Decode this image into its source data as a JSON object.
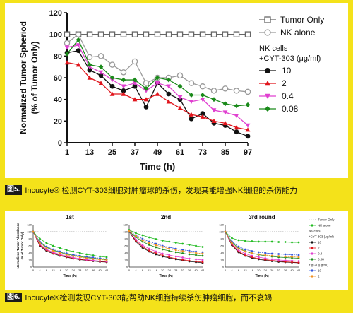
{
  "figure5": {
    "caption_tag": "图5.",
    "caption_text": "Incucyte® 检测CYT-303细胞对肿瘤球的杀伤，发现其能增强NK细胞的杀伤能力"
  },
  "figure6": {
    "caption_tag": "图6.",
    "caption_text": "Incucyte®检测发现CYT-303能帮助NK细胞持续杀伤肿瘤细胞，而不衰竭"
  },
  "chart_data": [
    {
      "type": "line",
      "xlabel": "Time (h)",
      "ylabel_line1": "Normalized Tumor Spheriod",
      "ylabel_line2": "(% of Tumor Only)",
      "xlim": [
        1,
        97
      ],
      "ylim": [
        0,
        120
      ],
      "xticks": [
        1,
        13,
        25,
        37,
        49,
        61,
        73,
        85,
        97
      ],
      "yticks": [
        0,
        20,
        40,
        60,
        80,
        100,
        120
      ],
      "x": [
        1,
        7,
        13,
        19,
        25,
        31,
        37,
        43,
        49,
        55,
        61,
        67,
        73,
        79,
        85,
        91,
        97
      ],
      "legend_title_line1": "NK cells",
      "legend_title_line2": "+CYT-303 (μg/ml)",
      "series": [
        {
          "name": "Tumor Only",
          "color": "#666666",
          "marker": "square-open",
          "values": [
            100,
            100,
            100,
            100,
            100,
            100,
            100,
            100,
            100,
            100,
            100,
            100,
            100,
            100,
            100,
            100,
            100
          ]
        },
        {
          "name": "NK alone",
          "color": "#9a9a9a",
          "marker": "circle-open",
          "values": [
            92,
            100,
            79,
            80,
            72,
            65,
            75,
            55,
            60,
            60,
            62,
            55,
            52,
            48,
            50,
            48,
            47
          ]
        },
        {
          "name": "10",
          "color": "#111111",
          "marker": "circle",
          "values": [
            83,
            85,
            67,
            62,
            52,
            48,
            52,
            33,
            55,
            45,
            40,
            22,
            27,
            18,
            16,
            10,
            6
          ]
        },
        {
          "name": "2",
          "color": "#e0141b",
          "marker": "triangle",
          "values": [
            74,
            72,
            60,
            55,
            45,
            45,
            40,
            40,
            45,
            38,
            32,
            26,
            24,
            20,
            18,
            14,
            12
          ]
        },
        {
          "name": "0.4",
          "color": "#e040d0",
          "marker": "triangle-down",
          "values": [
            88,
            90,
            70,
            65,
            58,
            52,
            55,
            48,
            55,
            52,
            42,
            38,
            40,
            30,
            28,
            25,
            16
          ]
        },
        {
          "name": "0.08",
          "color": "#1a8a1a",
          "marker": "diamond",
          "values": [
            82,
            95,
            72,
            70,
            60,
            58,
            58,
            50,
            60,
            58,
            52,
            44,
            44,
            40,
            36,
            34,
            35
          ]
        }
      ]
    },
    {
      "type": "line",
      "subplots": [
        {
          "title": "1st",
          "xlabel": "Time (h)",
          "ylabel_line1": "Normalized Tumor Abundance",
          "ylabel_line2": "(% of Tumor Only)",
          "ylim": [
            0,
            120
          ],
          "yticks": [
            0,
            20,
            40,
            60,
            80,
            100,
            120
          ],
          "xticks": [
            0,
            4,
            8,
            12,
            16,
            20,
            24,
            28,
            32,
            36,
            40,
            44
          ],
          "x": [
            0,
            4,
            8,
            12,
            16,
            20,
            24,
            28,
            32,
            36,
            40,
            44
          ],
          "series": [
            {
              "name": "Tumor Only",
              "color": "#999999",
              "values": [
                100,
                100,
                100,
                100,
                100,
                100,
                100,
                100,
                100,
                100,
                100,
                100
              ]
            },
            {
              "name": "NK alone",
              "color": "#22bb22",
              "values": [
                100,
                80,
                68,
                60,
                54,
                48,
                44,
                40,
                36,
                33,
                30,
                28
              ]
            },
            {
              "name": "10",
              "color": "#111111",
              "values": [
                100,
                60,
                45,
                38,
                32,
                28,
                24,
                21,
                19,
                17,
                15,
                14
              ]
            },
            {
              "name": "2",
              "color": "#e0141b",
              "values": [
                100,
                62,
                48,
                40,
                34,
                29,
                25,
                22,
                20,
                18,
                16,
                15
              ]
            },
            {
              "name": "0.4",
              "color": "#e040d0",
              "values": [
                100,
                65,
                50,
                42,
                36,
                31,
                27,
                24,
                21,
                19,
                17,
                16
              ]
            },
            {
              "name": "0.08",
              "color": "#1a8a1a",
              "values": [
                100,
                70,
                56,
                48,
                42,
                37,
                33,
                30,
                27,
                25,
                23,
                21
              ]
            },
            {
              "name": "10",
              "color": "#3355dd",
              "values": [
                100,
                72,
                58,
                50,
                44,
                39,
                35,
                32,
                29,
                27,
                25,
                23
              ]
            },
            {
              "name": "2",
              "color": "#f09020",
              "values": [
                100,
                68,
                54,
                46,
                40,
                35,
                31,
                28,
                25,
                23,
                21,
                20
              ]
            }
          ]
        },
        {
          "title": "2nd",
          "xlabel": "Time (h)",
          "ylim": [
            0,
            120
          ],
          "yticks": [
            0,
            20,
            40,
            60,
            80,
            100,
            120
          ],
          "xticks": [
            0,
            4,
            8,
            12,
            16,
            20,
            24,
            28,
            32,
            36,
            40,
            44
          ],
          "x": [
            0,
            4,
            8,
            12,
            16,
            20,
            24,
            28,
            32,
            36,
            40,
            44
          ],
          "series": [
            {
              "name": "Tumor Only",
              "color": "#999999",
              "values": [
                100,
                100,
                100,
                100,
                100,
                100,
                100,
                100,
                100,
                100,
                100,
                100
              ]
            },
            {
              "name": "NK alone",
              "color": "#22bb22",
              "values": [
                105,
                96,
                90,
                84,
                79,
                75,
                72,
                69,
                66,
                63,
                60,
                57
              ]
            },
            {
              "name": "10",
              "color": "#111111",
              "values": [
                100,
                72,
                55,
                44,
                36,
                30,
                26,
                22,
                19,
                16,
                14,
                12
              ]
            },
            {
              "name": "2",
              "color": "#e0141b",
              "values": [
                100,
                75,
                58,
                47,
                39,
                33,
                28,
                24,
                21,
                18,
                16,
                14
              ]
            },
            {
              "name": "0.4",
              "color": "#e040d0",
              "values": [
                100,
                78,
                62,
                52,
                44,
                38,
                34,
                30,
                27,
                24,
                22,
                20
              ]
            },
            {
              "name": "0.08",
              "color": "#1a8a1a",
              "values": [
                100,
                85,
                72,
                63,
                56,
                50,
                46,
                42,
                39,
                36,
                34,
                32
              ]
            },
            {
              "name": "10",
              "color": "#3355dd",
              "values": [
                102,
                90,
                80,
                72,
                66,
                60,
                56,
                52,
                49,
                46,
                44,
                42
              ]
            },
            {
              "name": "2",
              "color": "#f09020",
              "values": [
                102,
                88,
                76,
                68,
                62,
                57,
                52,
                48,
                45,
                42,
                40,
                38
              ]
            }
          ]
        },
        {
          "title": "3rd round",
          "xlabel": "Time (h)",
          "ylim": [
            0,
            120
          ],
          "yticks": [
            0,
            20,
            40,
            60,
            80,
            100,
            120
          ],
          "xticks": [
            0,
            4,
            8,
            12,
            16,
            20,
            24,
            28,
            32,
            36,
            40,
            44
          ],
          "x": [
            0,
            4,
            8,
            12,
            16,
            20,
            24,
            28,
            32,
            36,
            40,
            44
          ],
          "series": [
            {
              "name": "Tumor Only",
              "color": "#999999",
              "values": [
                100,
                100,
                100,
                100,
                100,
                100,
                100,
                100,
                100,
                100,
                100,
                100
              ]
            },
            {
              "name": "NK alone",
              "color": "#22bb22",
              "values": [
                100,
                82,
                76,
                74,
                73,
                72,
                72,
                72,
                71,
                71,
                70,
                70
              ]
            },
            {
              "name": "10",
              "color": "#111111",
              "values": [
                100,
                62,
                42,
                32,
                26,
                22,
                19,
                17,
                15,
                14,
                13,
                12
              ]
            },
            {
              "name": "2",
              "color": "#e0141b",
              "values": [
                100,
                64,
                44,
                34,
                28,
                24,
                21,
                19,
                17,
                15,
                14,
                13
              ]
            },
            {
              "name": "0.4",
              "color": "#e040d0",
              "values": [
                100,
                66,
                48,
                38,
                32,
                28,
                25,
                22,
                20,
                19,
                18,
                17
              ]
            },
            {
              "name": "0.08",
              "color": "#1a8a1a",
              "values": [
                100,
                70,
                54,
                45,
                39,
                35,
                32,
                30,
                28,
                27,
                26,
                25
              ]
            },
            {
              "name": "10",
              "color": "#3355dd",
              "values": [
                100,
                72,
                58,
                50,
                45,
                42,
                40,
                38,
                37,
                36,
                35,
                34
              ]
            },
            {
              "name": "2",
              "color": "#f09020",
              "values": [
                100,
                68,
                52,
                44,
                39,
                36,
                34,
                32,
                31,
                30,
                29,
                28
              ]
            }
          ]
        }
      ],
      "legend": [
        {
          "label": "Tumor Only",
          "color": "#999999",
          "style": "dotted"
        },
        {
          "label": "NK alone",
          "color": "#22bb22",
          "style": "marker"
        },
        {
          "label": "NK cells",
          "color": null,
          "style": "header"
        },
        {
          "label": "+CYT-303 (μg/ml)",
          "color": null,
          "style": "header"
        },
        {
          "label": "10",
          "color": "#111111",
          "style": "marker"
        },
        {
          "label": "2",
          "color": "#e0141b",
          "style": "marker"
        },
        {
          "label": "0.4",
          "color": "#e040d0",
          "style": "marker"
        },
        {
          "label": "0.08",
          "color": "#1a8a1a",
          "style": "marker"
        },
        {
          "label": "+IgG1 (μg/ml)",
          "color": null,
          "style": "header"
        },
        {
          "label": "10",
          "color": "#3355dd",
          "style": "marker"
        },
        {
          "label": "2",
          "color": "#f09020",
          "style": "marker"
        }
      ]
    }
  ]
}
